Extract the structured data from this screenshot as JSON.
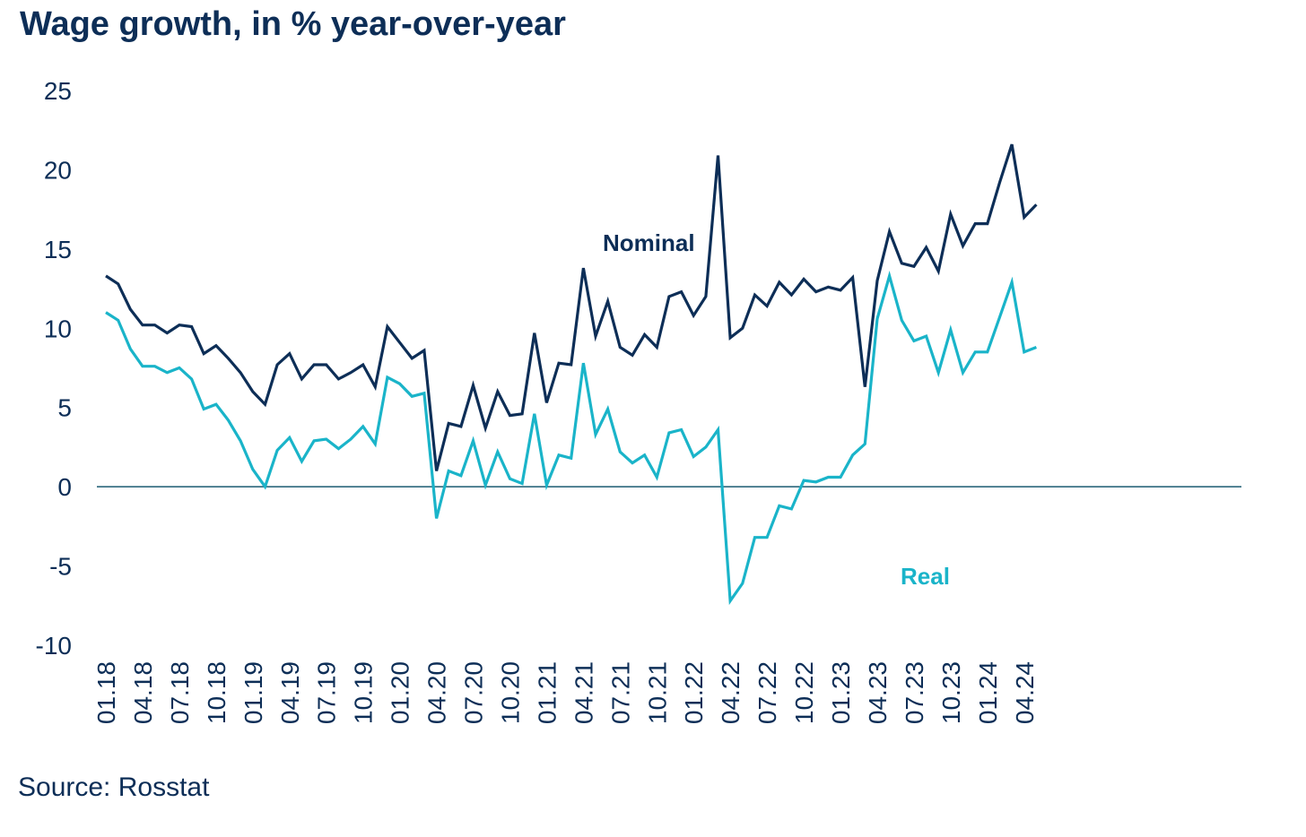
{
  "title": "Wage growth, in % year-over-year",
  "source": "Source: Rosstat",
  "colors": {
    "nominal": "#0d2e57",
    "real": "#1ab4c9",
    "axis": "#1a5a70",
    "text": "#0d2e57"
  },
  "chart_data": {
    "type": "line",
    "title": "Wage growth, in % year-over-year",
    "xlabel": "",
    "ylabel": "",
    "ylim": [
      -10,
      25
    ],
    "yticks": [
      25,
      20,
      15,
      10,
      5,
      0,
      -5,
      -10
    ],
    "x_tick_labels": [
      "01.18",
      "04.18",
      "07.18",
      "10.18",
      "01.19",
      "04.19",
      "07.19",
      "10.19",
      "01.20",
      "04.20",
      "07.20",
      "10.20",
      "01.21",
      "04.21",
      "07.21",
      "10.21",
      "01.22",
      "04.22",
      "07.22",
      "10.22",
      "01.23",
      "04.23",
      "07.23",
      "10.23",
      "01.24",
      "04.24"
    ],
    "x": [
      "01.18",
      "02.18",
      "03.18",
      "04.18",
      "05.18",
      "06.18",
      "07.18",
      "08.18",
      "09.18",
      "10.18",
      "11.18",
      "12.18",
      "01.19",
      "02.19",
      "03.19",
      "04.19",
      "05.19",
      "06.19",
      "07.19",
      "08.19",
      "09.19",
      "10.19",
      "11.19",
      "12.19",
      "01.20",
      "02.20",
      "03.20",
      "04.20",
      "05.20",
      "06.20",
      "07.20",
      "08.20",
      "09.20",
      "10.20",
      "11.20",
      "12.20",
      "01.21",
      "02.21",
      "03.21",
      "04.21",
      "05.21",
      "06.21",
      "07.21",
      "08.21",
      "09.21",
      "10.21",
      "11.21",
      "12.21",
      "01.22",
      "02.22",
      "03.22",
      "04.22",
      "05.22",
      "06.22",
      "07.22",
      "08.22",
      "09.22",
      "10.22",
      "11.22",
      "12.22",
      "01.23",
      "02.23",
      "03.23",
      "04.23",
      "05.23",
      "06.23",
      "07.23",
      "08.23",
      "09.23",
      "10.23",
      "11.23",
      "12.23",
      "01.24",
      "02.24",
      "03.24",
      "04.24",
      "05.24"
    ],
    "series": [
      {
        "name": "Nominal",
        "color": "#0d2e57",
        "values": [
          13.3,
          12.8,
          11.2,
          10.2,
          10.2,
          9.7,
          10.2,
          10.1,
          8.4,
          8.9,
          8.1,
          7.2,
          6.0,
          5.2,
          7.7,
          8.4,
          6.8,
          7.7,
          7.7,
          6.8,
          7.2,
          7.7,
          6.3,
          10.1,
          9.1,
          8.1,
          8.6,
          1.0,
          4.0,
          3.8,
          6.4,
          3.7,
          6.0,
          4.5,
          4.6,
          9.7,
          5.3,
          7.8,
          7.7,
          13.8,
          9.5,
          11.7,
          8.8,
          8.3,
          9.6,
          8.8,
          12.0,
          12.3,
          10.8,
          12.0,
          20.9,
          9.4,
          10.0,
          12.1,
          11.4,
          12.9,
          12.1,
          13.1,
          12.3,
          12.6,
          12.4,
          13.2,
          6.3,
          13.0,
          16.1,
          14.1,
          13.9,
          15.1,
          13.6,
          17.2,
          15.2,
          16.6,
          16.6,
          19.2,
          21.6,
          17.0,
          17.8
        ]
      },
      {
        "name": "Real",
        "color": "#1ab4c9",
        "values": [
          11.0,
          10.5,
          8.7,
          7.6,
          7.6,
          7.2,
          7.5,
          6.8,
          4.9,
          5.2,
          4.2,
          2.9,
          1.1,
          0.0,
          2.3,
          3.1,
          1.6,
          2.9,
          3.0,
          2.4,
          3.0,
          3.8,
          2.7,
          6.9,
          6.5,
          5.7,
          5.9,
          -2.0,
          1.0,
          0.7,
          2.9,
          0.1,
          2.2,
          0.5,
          0.2,
          4.6,
          0.1,
          2.0,
          1.8,
          7.8,
          3.3,
          4.9,
          2.2,
          1.5,
          2.0,
          0.6,
          3.4,
          3.6,
          1.9,
          2.5,
          3.6,
          -7.2,
          -6.1,
          -3.2,
          -3.2,
          -1.2,
          -1.4,
          0.4,
          0.3,
          0.6,
          0.6,
          2.0,
          2.7,
          10.6,
          13.3,
          10.5,
          9.2,
          9.5,
          7.2,
          9.9,
          7.2,
          8.5,
          8.5,
          10.7,
          12.9,
          8.5,
          8.8
        ]
      }
    ],
    "legend": "inline labels"
  }
}
